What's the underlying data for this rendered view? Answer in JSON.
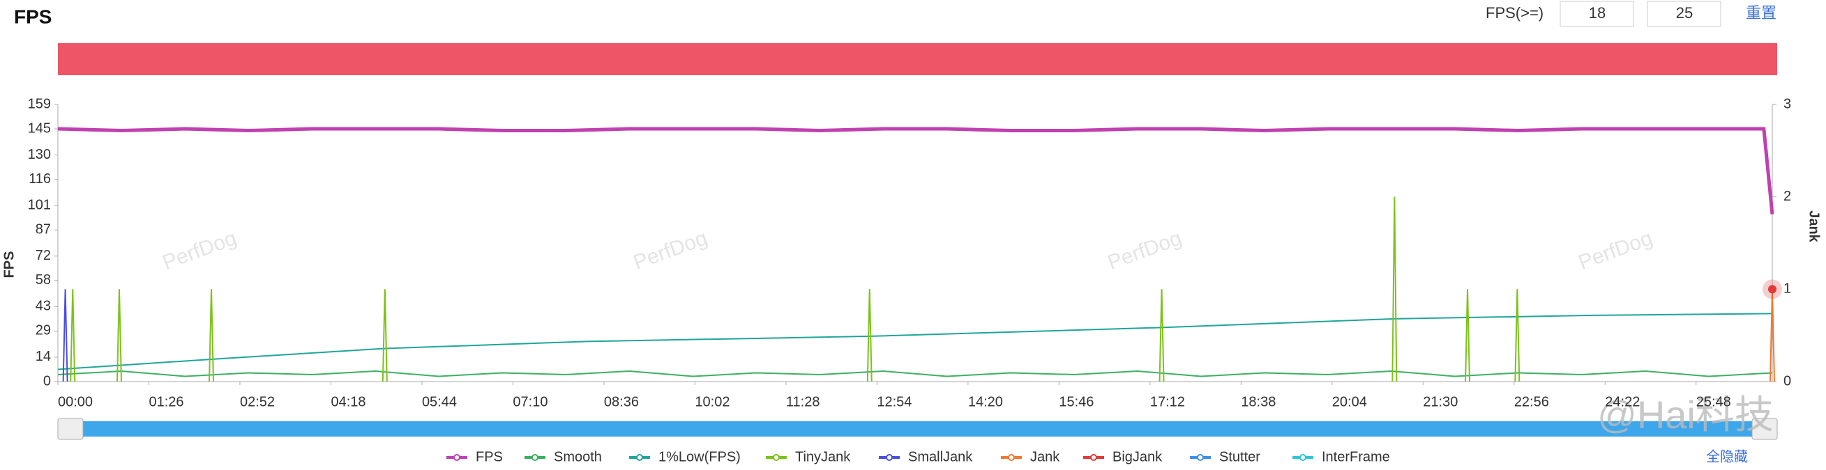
{
  "controls": {
    "threshold_label": "FPS(>=)",
    "threshold_low": "18",
    "threshold_high": "25",
    "reset": "重置",
    "hide_all": "全隐藏"
  },
  "watermark": "PerfDog",
  "source_watermark": "@Hai科技",
  "chart_data": {
    "type": "line",
    "title": "FPS",
    "y_label": "FPS",
    "y2_label": "Jank",
    "bar_color": "#ee5566",
    "xlim": [
      0,
      1620
    ],
    "xticks": [
      {
        "value": 0,
        "label": "00:00"
      },
      {
        "value": 86,
        "label": "01:26"
      },
      {
        "value": 172,
        "label": "02:52"
      },
      {
        "value": 258,
        "label": "04:18"
      },
      {
        "value": 344,
        "label": "05:44"
      },
      {
        "value": 430,
        "label": "07:10"
      },
      {
        "value": 516,
        "label": "08:36"
      },
      {
        "value": 602,
        "label": "10:02"
      },
      {
        "value": 688,
        "label": "11:28"
      },
      {
        "value": 774,
        "label": "12:54"
      },
      {
        "value": 860,
        "label": "14:20"
      },
      {
        "value": 946,
        "label": "15:46"
      },
      {
        "value": 1032,
        "label": "17:12"
      },
      {
        "value": 1118,
        "label": "18:38"
      },
      {
        "value": 1204,
        "label": "20:04"
      },
      {
        "value": 1290,
        "label": "21:30"
      },
      {
        "value": 1376,
        "label": "22:56"
      },
      {
        "value": 1462,
        "label": "24:22"
      },
      {
        "value": 1548,
        "label": "25:48"
      }
    ],
    "ylim": [
      0,
      159
    ],
    "yticks": [
      0,
      14,
      29,
      43,
      58,
      72,
      87,
      101,
      116,
      130,
      145,
      159
    ],
    "y2lim": [
      0,
      3
    ],
    "y2ticks": [
      0,
      1,
      2,
      3
    ],
    "grid": false,
    "series": [
      {
        "name": "FPS",
        "color": "#c040b0",
        "draw": "line",
        "x": [
          0,
          60,
          120,
          180,
          240,
          300,
          360,
          420,
          480,
          540,
          600,
          660,
          720,
          780,
          840,
          900,
          960,
          1020,
          1080,
          1140,
          1200,
          1260,
          1320,
          1380,
          1440,
          1500,
          1560,
          1612,
          1620
        ],
        "values": [
          145,
          144,
          145,
          144,
          145,
          145,
          145,
          144,
          144,
          145,
          145,
          145,
          144,
          145,
          145,
          144,
          144,
          145,
          145,
          144,
          145,
          145,
          145,
          144,
          145,
          145,
          145,
          145,
          96
        ]
      },
      {
        "name": "Smooth",
        "color": "#3cb062",
        "draw": "line",
        "x": [
          0,
          60,
          120,
          180,
          240,
          300,
          360,
          420,
          480,
          540,
          600,
          660,
          720,
          780,
          840,
          900,
          960,
          1020,
          1080,
          1140,
          1200,
          1260,
          1320,
          1380,
          1440,
          1500,
          1560,
          1620
        ],
        "values": [
          4,
          6,
          3,
          5,
          4,
          6,
          3,
          5,
          4,
          6,
          3,
          5,
          4,
          6,
          3,
          5,
          4,
          6,
          3,
          5,
          4,
          6,
          3,
          5,
          4,
          6,
          3,
          5
        ]
      },
      {
        "name": "1%Low(FPS)",
        "color": "#1fa59a",
        "draw": "line",
        "x": [
          0,
          150,
          309,
          500,
          767,
          1043,
          1263,
          1450,
          1620
        ],
        "values": [
          7,
          13,
          19,
          23,
          26,
          31,
          36,
          38,
          39
        ]
      },
      {
        "name": "TinyJank",
        "color": "#7cc21a",
        "draw": "spike",
        "axis": "y2",
        "x": [
          14,
          58,
          145,
          309,
          767,
          1043,
          1263,
          1332,
          1379
        ],
        "values": [
          1,
          1,
          1,
          1,
          1,
          1,
          2,
          1,
          1
        ]
      },
      {
        "name": "SmallJank",
        "color": "#4b4fe0",
        "draw": "spike",
        "axis": "y2",
        "x": [
          7
        ],
        "values": [
          1
        ]
      },
      {
        "name": "Jank",
        "color": "#f07a2e",
        "draw": "spike",
        "axis": "y2",
        "x": [
          1620
        ],
        "values": [
          1
        ]
      },
      {
        "name": "BigJank",
        "color": "#e03a3a",
        "draw": "dot",
        "axis": "y2",
        "x": [
          1620
        ],
        "values": [
          1
        ]
      },
      {
        "name": "Stutter",
        "color": "#3f8fe8",
        "draw": "spike",
        "axis": "y2",
        "x": [],
        "values": []
      },
      {
        "name": "InterFrame",
        "color": "#2bc7d8",
        "draw": "spike",
        "axis": "y2",
        "x": [],
        "values": []
      }
    ]
  }
}
